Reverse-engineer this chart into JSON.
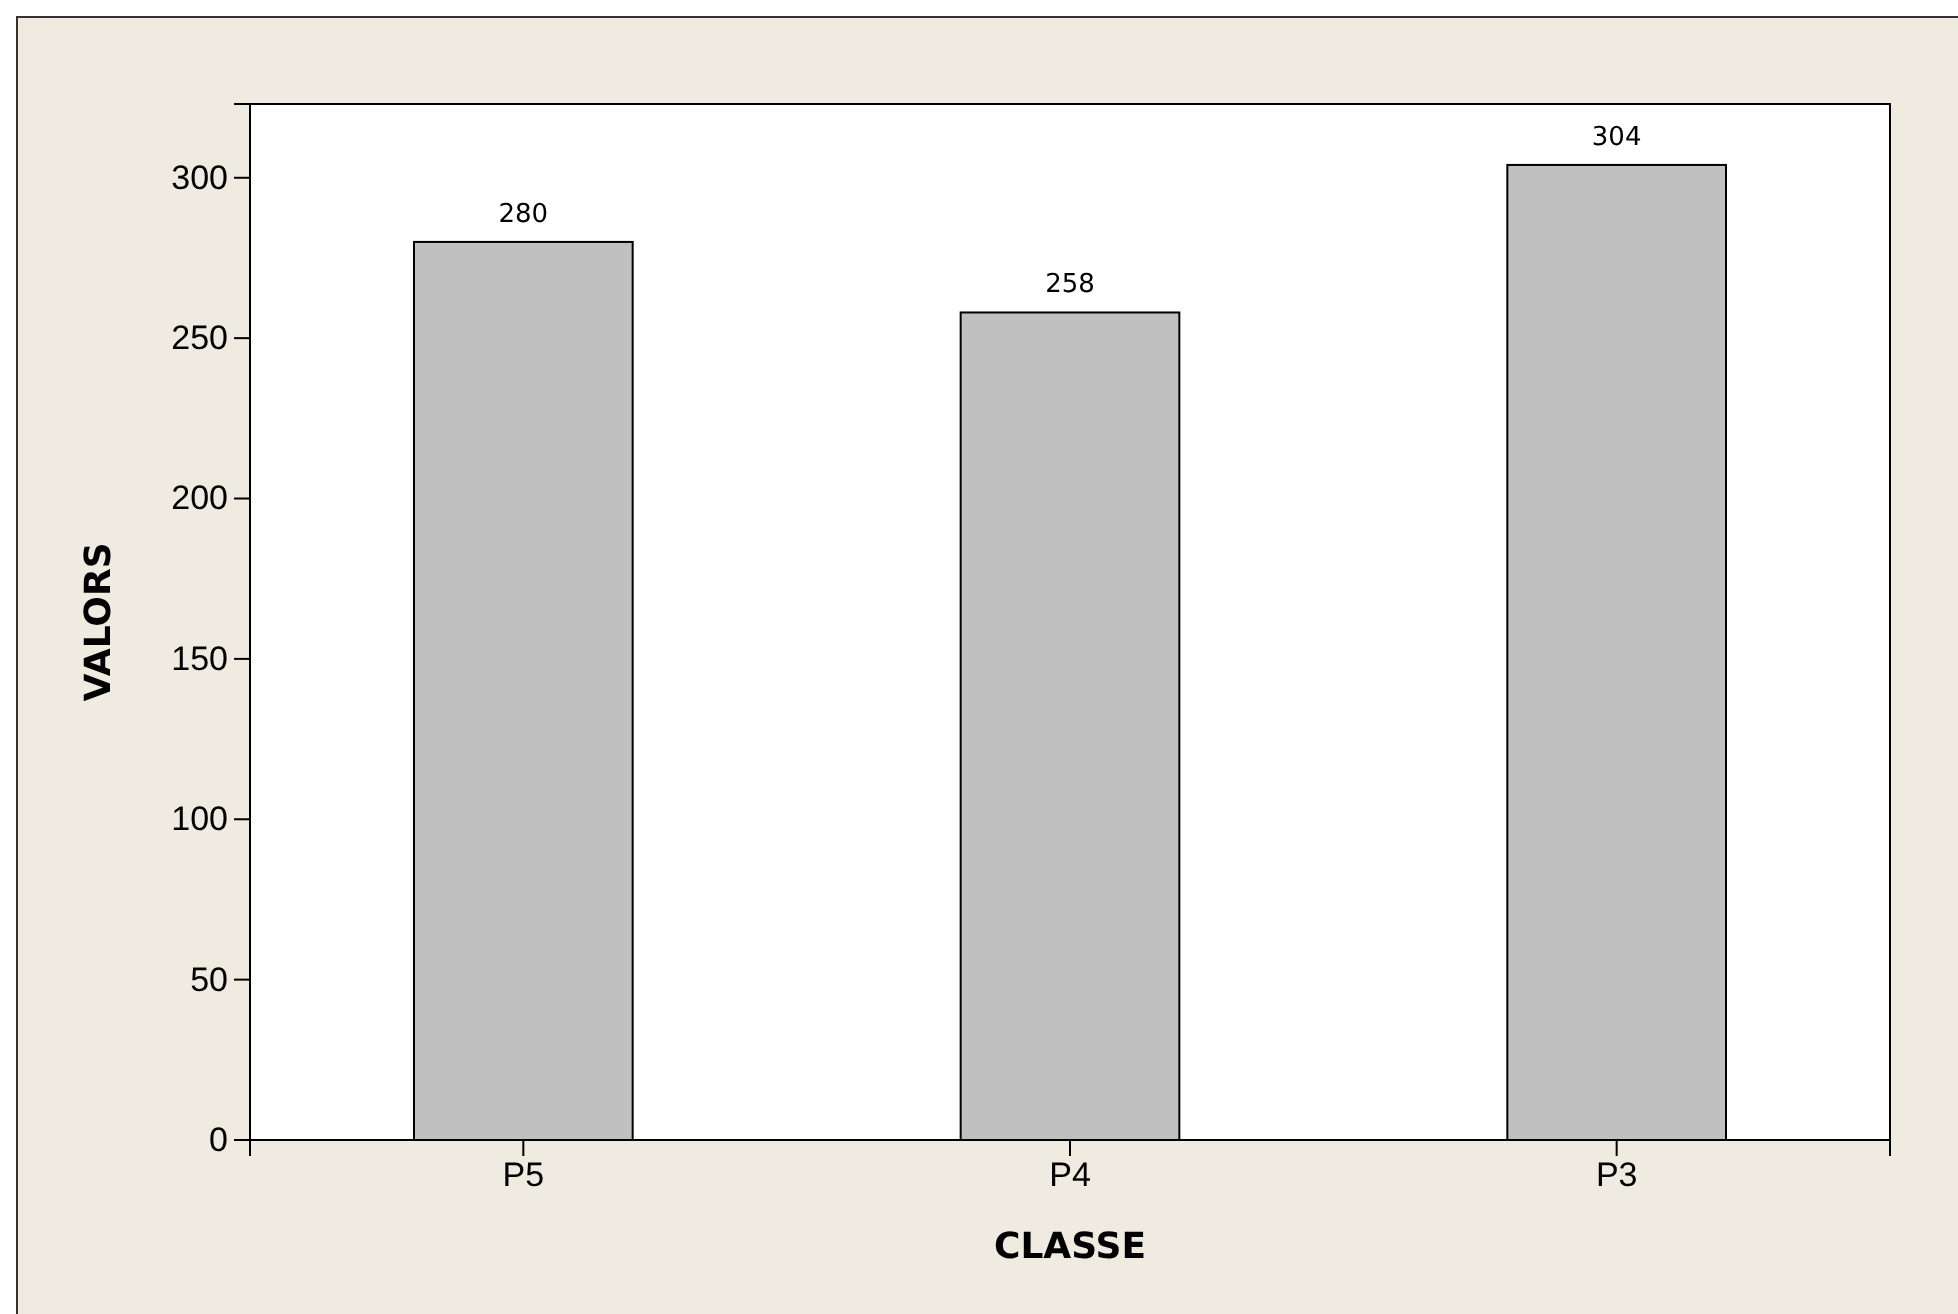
{
  "chart_data": {
    "type": "bar",
    "xlabel": "CLASSE",
    "ylabel": "VALORS",
    "categories": [
      "P5",
      "P4",
      "P3"
    ],
    "values": [
      280,
      258,
      304
    ],
    "color": "#c0c0c0",
    "ylim": [
      0,
      323
    ],
    "yticks": [
      0,
      50,
      100,
      150,
      200,
      250,
      300
    ],
    "data_labels": true,
    "grid": false
  }
}
